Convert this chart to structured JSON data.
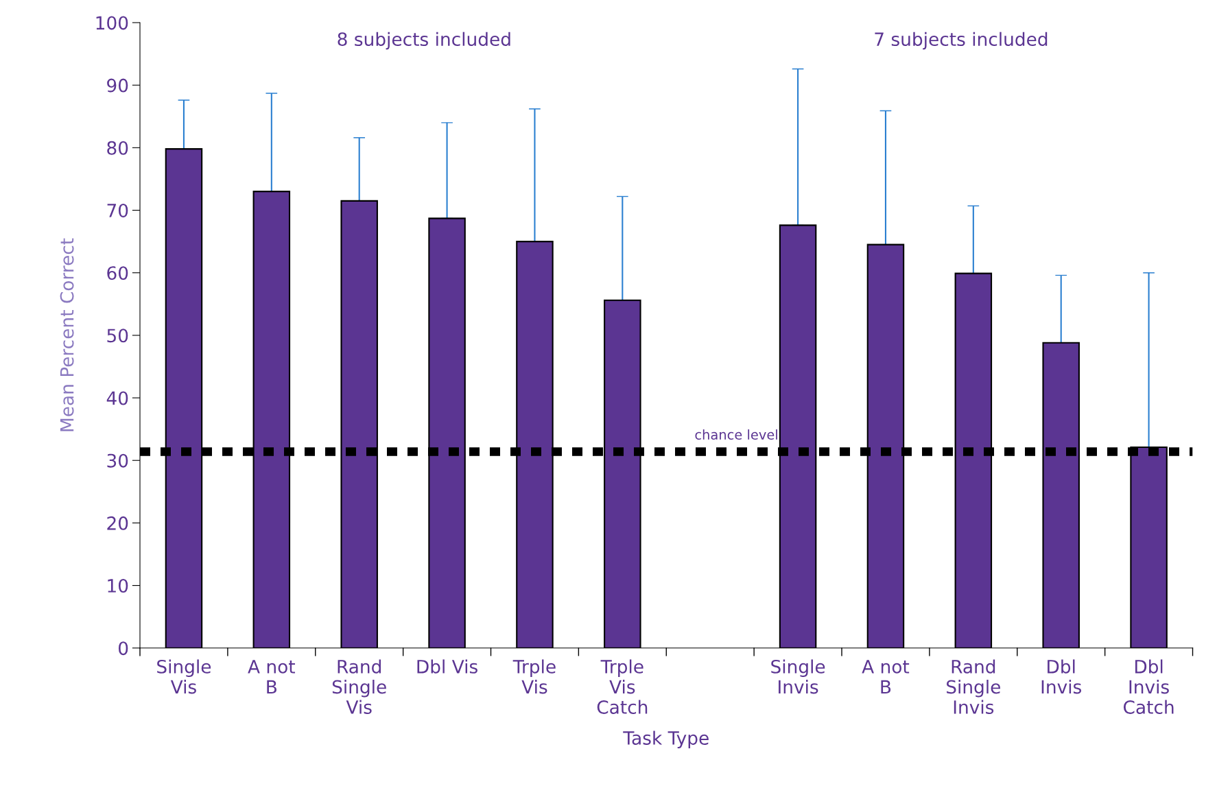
{
  "chart_data": {
    "type": "bar",
    "xlabel": "Task Type",
    "ylabel": "Mean Percent Correct",
    "categories": [
      "Single\nVis",
      "A not\nB",
      "Rand\nSingle\nVis",
      "Dbl Vis",
      "Trple\nVis",
      "Trple\nVis\nCatch",
      null,
      "Single\nInvis",
      "A not\nB",
      "Rand\nSingle\nInvis",
      "Dbl\nInvis",
      "Dbl\nInvis\nCatch"
    ],
    "values": [
      79.8,
      73.0,
      71.5,
      68.7,
      65.0,
      55.6,
      null,
      67.6,
      64.5,
      59.9,
      48.8,
      32.1
    ],
    "errors": [
      [
        79.8,
        87.6
      ],
      [
        73.0,
        88.7
      ],
      [
        71.5,
        81.6
      ],
      [
        68.7,
        84.0
      ],
      [
        65.0,
        86.2
      ],
      [
        55.6,
        72.2
      ],
      null,
      [
        67.6,
        92.6
      ],
      [
        64.5,
        85.9
      ],
      [
        59.9,
        70.7
      ],
      [
        48.8,
        59.6
      ],
      [
        32.1,
        60.0
      ]
    ],
    "color": "#5b3592",
    "ylim": [
      0,
      100
    ],
    "yticks": [
      0,
      10,
      20,
      30,
      40,
      50,
      60,
      70,
      80,
      90,
      100
    ],
    "grid": false,
    "ref_lines": [
      {
        "axis": "y",
        "value": 31.4,
        "label": "chance level",
        "color": "#000000",
        "line_style": "dotted"
      }
    ],
    "annotations": [
      "8 subjects included",
      "7 subjects included"
    ]
  }
}
